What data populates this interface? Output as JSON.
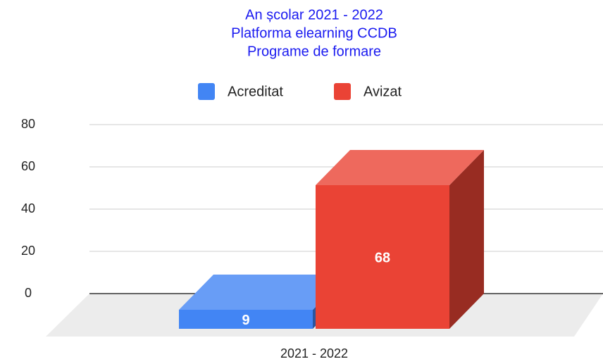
{
  "chart_data": {
    "type": "bar3d",
    "title": [
      "An școlar 2021 - 2022",
      "Platforma elearning CCDB",
      "Programe de formare"
    ],
    "categories": [
      "2021 - 2022"
    ],
    "series": [
      {
        "name": "Acreditat",
        "color": "#4285f4",
        "values": [
          9
        ]
      },
      {
        "name": "Avizat",
        "color": "#ea4335",
        "values": [
          68
        ]
      }
    ],
    "ylim": [
      0,
      80
    ],
    "yticks": [
      0,
      20,
      40,
      60,
      80
    ],
    "grid": true,
    "legend": "top"
  }
}
